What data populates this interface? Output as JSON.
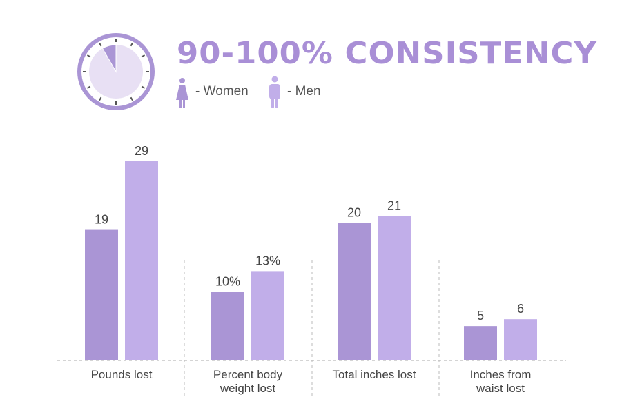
{
  "header": {
    "title": "90-100% CONSISTENCY"
  },
  "colors": {
    "women": "#aa95d5",
    "men": "#c1aee9",
    "title": "#a98fd6",
    "clock_face": "#e8e0f4"
  },
  "chart_data": {
    "type": "bar",
    "categories": [
      "Pounds lost",
      "Percent body weight lost",
      "Total inches lost",
      "Inches from waist lost"
    ],
    "category_lines": [
      [
        "Pounds lost"
      ],
      [
        "Percent body",
        "weight lost"
      ],
      [
        "Total inches lost"
      ],
      [
        "Inches from",
        "waist lost"
      ]
    ],
    "series": [
      {
        "name": "- Women",
        "icon": "woman-icon",
        "values": [
          19,
          10,
          20,
          5
        ],
        "labels": [
          "19",
          "10%",
          "20",
          "5"
        ]
      },
      {
        "name": "- Men",
        "icon": "man-icon",
        "values": [
          29,
          13,
          21,
          6
        ],
        "labels": [
          "29",
          "13%",
          "21",
          "6"
        ]
      }
    ],
    "legend": "top",
    "grid": false
  }
}
